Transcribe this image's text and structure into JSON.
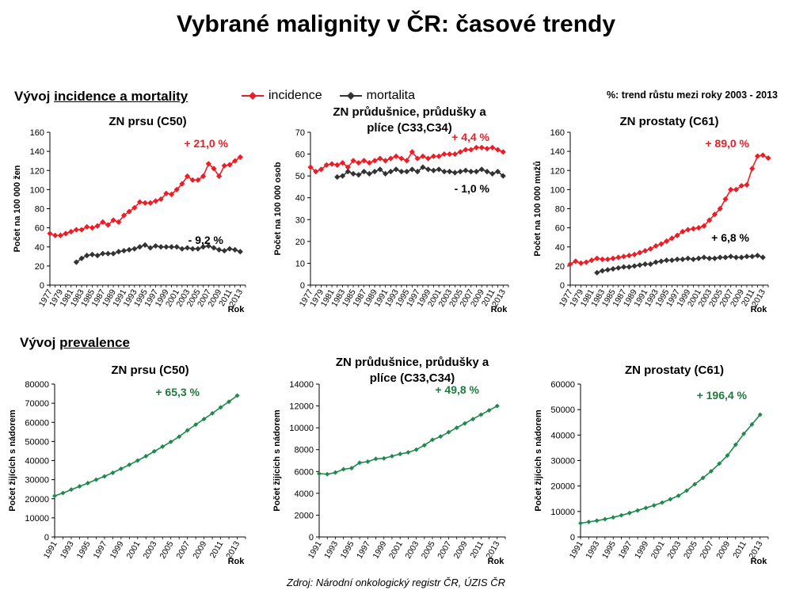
{
  "title": "Vybrané malignity v ČR: časové trendy",
  "section_incidence": {
    "prefix": "Vývoj ",
    "underlined": "incidence a mortality"
  },
  "section_prevalence": {
    "prefix": "Vývoj ",
    "underlined": "prevalence"
  },
  "legend": {
    "incidence": "incidence",
    "mortalita": "mortalita"
  },
  "trend_note": "%: trend růstu mezi roky 2003 - 2013",
  "source": "Zdroj: Národní onkologický registr ČR, ÚZIS ČR",
  "colors": {
    "incidence": "#ee1c25",
    "mortality": "#333333",
    "prevalence": "#1e8a4c",
    "prevalence_label": "#1e7a3c"
  },
  "chart_data": [
    {
      "type": "line",
      "title": "ZN prsu (C50)",
      "ylabel": "Počet na 100 000 žen",
      "xlabel": "Rok",
      "ylim": [
        0,
        160
      ],
      "yticks": [
        0,
        20,
        40,
        60,
        80,
        100,
        120,
        140,
        160
      ],
      "xlim": [
        1977,
        2014
      ],
      "xticks": [
        "1977",
        "1979",
        "1981",
        "1983",
        "1985",
        "1987",
        "1989",
        "1991",
        "1993",
        "1995",
        "1997",
        "1999",
        "2001",
        "2003",
        "2005",
        "2007",
        "2009",
        "2011",
        "2013"
      ],
      "series": [
        {
          "name": "incidence",
          "x_start": 1977,
          "values": [
            54,
            52,
            52,
            54,
            56,
            58,
            58,
            61,
            60,
            62,
            66,
            63,
            68,
            66,
            73,
            77,
            81,
            87,
            86,
            86,
            88,
            90,
            96,
            95,
            100,
            106,
            114,
            110,
            110,
            114,
            127,
            122,
            114,
            125,
            126,
            130,
            134
          ]
        },
        {
          "name": "mortalita",
          "x_start": 1982,
          "values": [
            24,
            28,
            31,
            32,
            31,
            33,
            33,
            33,
            35,
            36,
            37,
            38,
            40,
            42,
            39,
            41,
            40,
            40,
            40,
            40,
            38,
            39,
            38,
            38,
            40,
            41,
            39,
            37,
            36,
            38,
            37,
            35
          ]
        }
      ],
      "annotations": [
        {
          "text": "+ 21,0 %",
          "series": "incidence"
        },
        {
          "text": "- 9,2 %",
          "series": "mortalita"
        }
      ]
    },
    {
      "type": "line",
      "title": "ZN průdušnice, průdušky a plíce (C33,C34)",
      "title_lines": [
        "ZN průdušnice, průdušky a",
        "plíce (C33,C34)"
      ],
      "ylabel": "Počet na 100 000 osob",
      "xlabel": "Rok",
      "ylim": [
        0,
        70
      ],
      "yticks": [
        0,
        10,
        20,
        30,
        40,
        50,
        60,
        70
      ],
      "xlim": [
        1977,
        2014
      ],
      "xticks": [
        "1977",
        "1979",
        "1981",
        "1983",
        "1985",
        "1987",
        "1989",
        "1991",
        "1993",
        "1995",
        "1997",
        "1999",
        "2001",
        "2003",
        "2005",
        "2007",
        "2009",
        "2011",
        "2013"
      ],
      "series": [
        {
          "name": "incidence",
          "x_start": 1977,
          "values": [
            54,
            52,
            53,
            55,
            55.5,
            55,
            56,
            54,
            57,
            56,
            57,
            56,
            57,
            58,
            57,
            58,
            59,
            58,
            57,
            61,
            58,
            59,
            58,
            59,
            59,
            60,
            60,
            60,
            61,
            62,
            62,
            63,
            63,
            62.5,
            63,
            62,
            61
          ]
        },
        {
          "name": "mortalita",
          "x_start": 1982,
          "values": [
            49.5,
            50,
            52,
            51,
            50.5,
            52,
            51,
            52,
            53,
            51,
            52,
            53,
            52,
            52,
            53,
            52,
            54,
            53,
            52.5,
            53,
            52,
            52,
            51.5,
            52,
            52.5,
            52,
            52,
            53,
            52,
            51,
            52,
            50
          ]
        }
      ],
      "annotations": [
        {
          "text": "+ 4,4 %",
          "series": "incidence"
        },
        {
          "text": "- 1,0 %",
          "series": "mortalita"
        }
      ]
    },
    {
      "type": "line",
      "title": "ZN prostaty (C61)",
      "ylabel": "Počet na 100 000 mužů",
      "xlabel": "Rok",
      "ylim": [
        0,
        160
      ],
      "yticks": [
        0,
        20,
        40,
        60,
        80,
        100,
        120,
        140,
        160
      ],
      "xlim": [
        1977,
        2014
      ],
      "xticks": [
        "1977",
        "1979",
        "1981",
        "1983",
        "1985",
        "1987",
        "1989",
        "1991",
        "1993",
        "1995",
        "1997",
        "1999",
        "2001",
        "2003",
        "2005",
        "2007",
        "2009",
        "2011",
        "2013"
      ],
      "series": [
        {
          "name": "incidence",
          "x_start": 1977,
          "values": [
            22,
            25,
            23,
            24,
            26,
            28,
            27,
            27,
            28,
            29,
            30,
            31,
            32,
            34,
            36,
            38,
            41,
            43,
            46,
            49,
            52,
            56,
            58,
            59,
            60,
            62,
            68,
            74,
            80,
            90,
            100,
            100,
            104,
            105,
            122,
            135,
            136,
            133
          ]
        },
        {
          "name": "mortalita",
          "x_start": 1982,
          "values": [
            13,
            15,
            16,
            17,
            18,
            19,
            19,
            20,
            21,
            22,
            22,
            24,
            25,
            26,
            26,
            27,
            27,
            28,
            27,
            28,
            29,
            28,
            28,
            29,
            29,
            30,
            29,
            29,
            30,
            30,
            31,
            29
          ]
        }
      ],
      "annotations": [
        {
          "text": "+ 89,0 %",
          "series": "incidence"
        },
        {
          "text": "+ 6,8 %",
          "series": "mortalita"
        }
      ]
    },
    {
      "type": "line",
      "title": "ZN prsu (C50)",
      "ylabel": "Počet žijících s nádorem",
      "xlabel": "Rok",
      "ylim": [
        0,
        80000
      ],
      "yticks": [
        0,
        10000,
        20000,
        30000,
        40000,
        50000,
        60000,
        70000,
        80000
      ],
      "xlim": [
        1991,
        2014
      ],
      "xticks": [
        "1991",
        "1993",
        "1995",
        "1997",
        "1999",
        "2001",
        "2003",
        "2005",
        "2007",
        "2009",
        "2011",
        "2013"
      ],
      "series": [
        {
          "name": "prevalence",
          "x_start": 1991,
          "values": [
            21500,
            23000,
            24800,
            26500,
            28200,
            30000,
            31700,
            33600,
            35700,
            37800,
            40000,
            42300,
            44800,
            47300,
            49800,
            52500,
            55800,
            58800,
            61700,
            64700,
            67800,
            70800,
            74000
          ]
        }
      ],
      "annotations": [
        {
          "text": "+ 65,3 %",
          "series": "prevalence"
        }
      ]
    },
    {
      "type": "line",
      "title": "ZN průdušnice, průdušky a plíce (C33,C34)",
      "title_lines": [
        "ZN průdušnice, průdušky a",
        "plíce (C33,C34)"
      ],
      "ylabel": "Počet žijících s nádorem",
      "xlabel": "Rok",
      "ylim": [
        0,
        14000
      ],
      "yticks": [
        0,
        2000,
        4000,
        6000,
        8000,
        10000,
        12000,
        14000
      ],
      "xlim": [
        1991,
        2014
      ],
      "xticks": [
        "1991",
        "1993",
        "1995",
        "1997",
        "1999",
        "2001",
        "2003",
        "2005",
        "2007",
        "2009",
        "2011",
        "2013"
      ],
      "series": [
        {
          "name": "prevalence",
          "x_start": 1991,
          "values": [
            5800,
            5750,
            5900,
            6200,
            6300,
            6800,
            6900,
            7150,
            7200,
            7400,
            7600,
            7750,
            8000,
            8400,
            8900,
            9200,
            9600,
            10000,
            10400,
            10800,
            11200,
            11600,
            12000
          ]
        }
      ],
      "annotations": [
        {
          "text": "+ 49,8 %",
          "series": "prevalence"
        }
      ]
    },
    {
      "type": "line",
      "title": "ZN prostaty (C61)",
      "ylabel": "Počet žijících s nádorem",
      "xlabel": "Rok",
      "ylim": [
        0,
        60000
      ],
      "yticks": [
        0,
        10000,
        20000,
        30000,
        40000,
        50000,
        60000
      ],
      "xlim": [
        1991,
        2014
      ],
      "xticks": [
        "1991",
        "1993",
        "1995",
        "1997",
        "1999",
        "2001",
        "2003",
        "2005",
        "2007",
        "2009",
        "2011",
        "2013"
      ],
      "series": [
        {
          "name": "prevalence",
          "x_start": 1991,
          "values": [
            5400,
            5900,
            6400,
            7000,
            7700,
            8500,
            9400,
            10400,
            11400,
            12400,
            13500,
            14800,
            16200,
            18200,
            20700,
            23200,
            25800,
            28800,
            32000,
            36200,
            40500,
            44200,
            48000
          ]
        }
      ],
      "annotations": [
        {
          "text": "+ 196,4 %",
          "series": "prevalence"
        }
      ]
    }
  ]
}
